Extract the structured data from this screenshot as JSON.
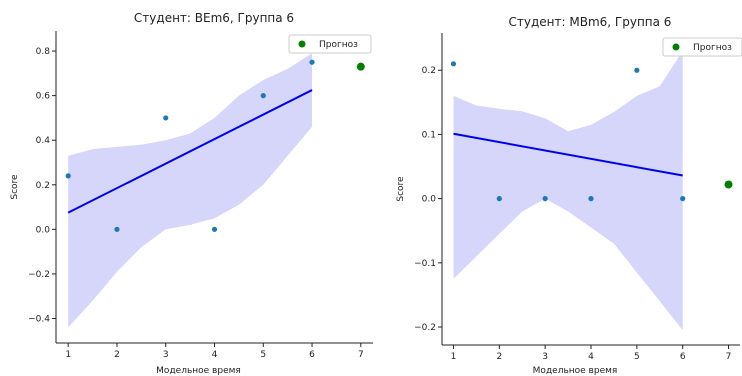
{
  "colors": {
    "points": "#1f77b4",
    "regression": "#0000ee",
    "band": "#d6d6fb",
    "forecast": "#008000",
    "axis": "#222222"
  },
  "chart_data": [
    {
      "type": "scatter",
      "title": "Студент: BEm6, Группа 6",
      "xlabel": "Модельное время",
      "ylabel": "Score",
      "xlim": [
        0.75,
        7.25
      ],
      "ylim": [
        -0.51,
        0.89
      ],
      "xticks": [
        1,
        2,
        3,
        4,
        5,
        6,
        7
      ],
      "yticks": [
        -0.4,
        -0.2,
        0.0,
        0.2,
        0.4,
        0.6,
        0.8
      ],
      "ytick_labels": [
        "−0.4",
        "−0.2",
        "0.0",
        "0.2",
        "0.4",
        "0.6",
        "0.8"
      ],
      "grid": false,
      "legend": {
        "position": "top-right",
        "entries": [
          "Прогноз"
        ]
      },
      "points": {
        "x": [
          1,
          2,
          3,
          4,
          5,
          6
        ],
        "y": [
          0.24,
          0.0,
          0.5,
          0.0,
          0.6,
          0.75
        ]
      },
      "regression": {
        "x": [
          1,
          6
        ],
        "y": [
          0.075,
          0.625
        ]
      },
      "confidence_band": {
        "x": [
          1,
          1.5,
          2,
          2.5,
          3,
          3.5,
          4,
          4.5,
          5,
          5.5,
          6
        ],
        "upper": [
          0.33,
          0.36,
          0.37,
          0.38,
          0.4,
          0.43,
          0.5,
          0.6,
          0.67,
          0.72,
          0.79
        ],
        "lower": [
          -0.44,
          -0.32,
          -0.19,
          -0.08,
          0.0,
          0.02,
          0.05,
          0.11,
          0.2,
          0.33,
          0.46
        ]
      },
      "forecast": {
        "x": [
          7
        ],
        "y": [
          0.73
        ]
      }
    },
    {
      "type": "scatter",
      "title": "Студент: MBm6, Группа 6",
      "xlabel": "Модельное время",
      "ylabel": "Score",
      "xlim": [
        0.75,
        7.25
      ],
      "ylim": [
        -0.228,
        0.258
      ],
      "xticks": [
        1,
        2,
        3,
        4,
        5,
        6,
        7
      ],
      "yticks": [
        -0.2,
        -0.1,
        0.0,
        0.1,
        0.2
      ],
      "ytick_labels": [
        "−0.2",
        "−0.1",
        "0.0",
        "0.1",
        "0.2"
      ],
      "grid": false,
      "legend": {
        "position": "top-right",
        "entries": [
          "Прогноз"
        ]
      },
      "points": {
        "x": [
          1,
          2,
          3,
          4,
          5,
          6
        ],
        "y": [
          0.21,
          0.0,
          0.0,
          0.0,
          0.2,
          0.0
        ]
      },
      "regression": {
        "x": [
          1,
          6
        ],
        "y": [
          0.101,
          0.036
        ]
      },
      "confidence_band": {
        "x": [
          1,
          1.5,
          2,
          2.5,
          3,
          3.5,
          4,
          4.5,
          5,
          5.5,
          6
        ],
        "upper": [
          0.16,
          0.145,
          0.14,
          0.136,
          0.125,
          0.105,
          0.115,
          0.135,
          0.16,
          0.175,
          0.23
        ],
        "lower": [
          -0.125,
          -0.09,
          -0.055,
          -0.02,
          0.0,
          -0.02,
          -0.045,
          -0.07,
          -0.115,
          -0.16,
          -0.205
        ]
      },
      "forecast": {
        "x": [
          7
        ],
        "y": [
          0.022
        ]
      }
    }
  ]
}
